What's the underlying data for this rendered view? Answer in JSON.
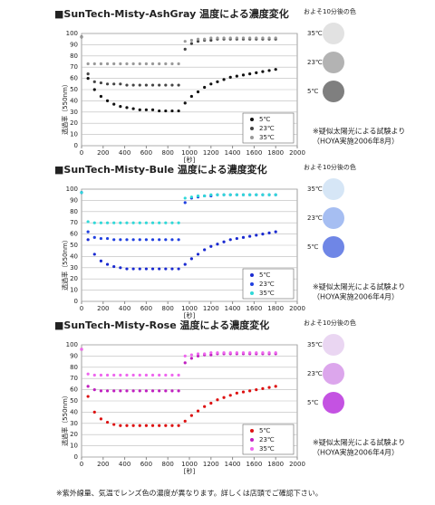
{
  "chart_data": [
    {
      "type": "scatter",
      "title": "■SunTech-Misty-AshGray 温度による濃度変化",
      "y_label": "透過率（550nm）",
      "x_label": "[秒]",
      "x": [
        0,
        60,
        120,
        180,
        240,
        300,
        360,
        420,
        480,
        540,
        600,
        660,
        720,
        780,
        840,
        900,
        960,
        1020,
        1080,
        1140,
        1200,
        1260,
        1320,
        1380,
        1440,
        1500,
        1560,
        1620,
        1680,
        1740,
        1800
      ],
      "series": [
        {
          "name": "5℃",
          "color": "#111111",
          "values": [
            97,
            60,
            50,
            44,
            40,
            37,
            35,
            34,
            33,
            32,
            32,
            32,
            31,
            31,
            31,
            31,
            38,
            44,
            48,
            52,
            55,
            57,
            59,
            61,
            62,
            63,
            64,
            65,
            66,
            67,
            68
          ]
        },
        {
          "name": "23℃",
          "color": "#444444",
          "values": [
            97,
            64,
            57,
            56,
            55,
            55,
            55,
            54,
            54,
            54,
            54,
            54,
            54,
            54,
            54,
            54,
            86,
            91,
            93,
            94,
            94,
            95,
            95,
            95,
            95,
            95,
            95,
            95,
            95,
            95,
            95
          ]
        },
        {
          "name": "35℃",
          "color": "#999999",
          "values": [
            97,
            73,
            73,
            73,
            73,
            73,
            73,
            73,
            73,
            73,
            73,
            73,
            73,
            73,
            73,
            73,
            93,
            94,
            95,
            95,
            96,
            96,
            96,
            96,
            96,
            96,
            96,
            96,
            96,
            96,
            96
          ]
        }
      ],
      "xlim": [
        0,
        2000
      ],
      "xticks": [
        0,
        200,
        400,
        600,
        800,
        1000,
        1200,
        1400,
        1600,
        1800,
        2000
      ],
      "ylim": [
        0,
        100
      ],
      "yticks": [
        0,
        10,
        20,
        30,
        40,
        50,
        60,
        70,
        80,
        90,
        100
      ],
      "grid": true,
      "legend": "lower right",
      "swatch_title": "およそ10分後の色",
      "swatches": [
        {
          "label": "35℃",
          "color": "#e2e2e2"
        },
        {
          "label": "23℃",
          "color": "#b3b3b3"
        },
        {
          "label": "5℃",
          "color": "#7f7f7f"
        }
      ],
      "note": [
        "※疑似太陽光による試験より",
        "（HOYA実施2006年8月）"
      ]
    },
    {
      "type": "scatter",
      "title": "■SunTech-Misty-Bule 温度による濃度変化",
      "y_label": "透過率（550nm）",
      "x_label": "[秒]",
      "x": [
        0,
        60,
        120,
        180,
        240,
        300,
        360,
        420,
        480,
        540,
        600,
        660,
        720,
        780,
        840,
        900,
        960,
        1020,
        1080,
        1140,
        1200,
        1260,
        1320,
        1380,
        1440,
        1500,
        1560,
        1620,
        1680,
        1740,
        1800
      ],
      "series": [
        {
          "name": "5℃",
          "color": "#1a2ad0",
          "values": [
            97,
            55,
            42,
            36,
            33,
            31,
            30,
            29,
            29,
            29,
            29,
            29,
            29,
            29,
            29,
            29,
            33,
            38,
            42,
            46,
            49,
            51,
            53,
            55,
            56,
            57,
            58,
            59,
            60,
            61,
            62
          ]
        },
        {
          "name": "23℃",
          "color": "#2040e0",
          "values": [
            97,
            62,
            57,
            56,
            56,
            55,
            55,
            55,
            55,
            55,
            55,
            55,
            55,
            55,
            55,
            55,
            88,
            92,
            93,
            94,
            94,
            95,
            95,
            95,
            95,
            95,
            95,
            95,
            95,
            95,
            95
          ]
        },
        {
          "name": "35℃",
          "color": "#30d8d8",
          "values": [
            97,
            71,
            70,
            70,
            70,
            70,
            70,
            70,
            70,
            70,
            70,
            70,
            70,
            70,
            70,
            70,
            92,
            93,
            94,
            94,
            95,
            95,
            95,
            95,
            95,
            95,
            95,
            95,
            95,
            95,
            95
          ]
        }
      ],
      "xlim": [
        0,
        2000
      ],
      "xticks": [
        0,
        200,
        400,
        600,
        800,
        1000,
        1200,
        1400,
        1600,
        1800,
        2000
      ],
      "ylim": [
        0,
        100
      ],
      "yticks": [
        0,
        10,
        20,
        30,
        40,
        50,
        60,
        70,
        80,
        90,
        100
      ],
      "grid": true,
      "legend": "lower right",
      "swatch_title": "およそ10分後の色",
      "swatches": [
        {
          "label": "35℃",
          "color": "#d6e6f6"
        },
        {
          "label": "23℃",
          "color": "#a6bef2"
        },
        {
          "label": "5℃",
          "color": "#6f86e6"
        }
      ],
      "note": [
        "※疑似太陽光による試験より",
        "（HOYA実施2006年4月）"
      ]
    },
    {
      "type": "scatter",
      "title": "■SunTech-Misty-Rose 温度による濃度変化",
      "y_label": "透過率（550nm）",
      "x_label": "[秒]",
      "x": [
        0,
        60,
        120,
        180,
        240,
        300,
        360,
        420,
        480,
        540,
        600,
        660,
        720,
        780,
        840,
        900,
        960,
        1020,
        1080,
        1140,
        1200,
        1260,
        1320,
        1380,
        1440,
        1500,
        1560,
        1620,
        1680,
        1740,
        1800
      ],
      "series": [
        {
          "name": "5℃",
          "color": "#dd1111",
          "values": [
            96,
            54,
            40,
            34,
            31,
            29,
            28,
            28,
            28,
            28,
            28,
            28,
            28,
            28,
            28,
            28,
            32,
            37,
            41,
            45,
            48,
            51,
            53,
            55,
            57,
            58,
            59,
            60,
            61,
            62,
            63
          ]
        },
        {
          "name": "23℃",
          "color": "#c020c0",
          "values": [
            96,
            63,
            60,
            59,
            59,
            59,
            59,
            59,
            59,
            59,
            59,
            59,
            59,
            59,
            59,
            59,
            84,
            88,
            90,
            91,
            91,
            92,
            92,
            92,
            92,
            92,
            92,
            92,
            92,
            92,
            92
          ]
        },
        {
          "name": "35℃",
          "color": "#ee66ee",
          "values": [
            96,
            74,
            73,
            73,
            73,
            73,
            73,
            73,
            73,
            73,
            73,
            73,
            73,
            73,
            73,
            73,
            90,
            91,
            92,
            92,
            93,
            93,
            93,
            93,
            93,
            93,
            93,
            93,
            93,
            93,
            93
          ]
        }
      ],
      "xlim": [
        0,
        2000
      ],
      "xticks": [
        0,
        200,
        400,
        600,
        800,
        1000,
        1200,
        1400,
        1600,
        1800,
        2000
      ],
      "ylim": [
        0,
        100
      ],
      "yticks": [
        0,
        10,
        20,
        30,
        40,
        50,
        60,
        70,
        80,
        90,
        100
      ],
      "grid": true,
      "legend": "lower right",
      "swatch_title": "およそ10分後の色",
      "swatches": [
        {
          "label": "35℃",
          "color": "#ead6f2"
        },
        {
          "label": "23℃",
          "color": "#dca6ec"
        },
        {
          "label": "5℃",
          "color": "#c452e2"
        }
      ],
      "note": [
        "※疑似太陽光による試験より",
        "（HOYA実施2006年4月）"
      ]
    }
  ],
  "footer": "※紫外線量、気温でレンズ色の濃度が異なります。詳しくは店頭でご確認下さい。"
}
